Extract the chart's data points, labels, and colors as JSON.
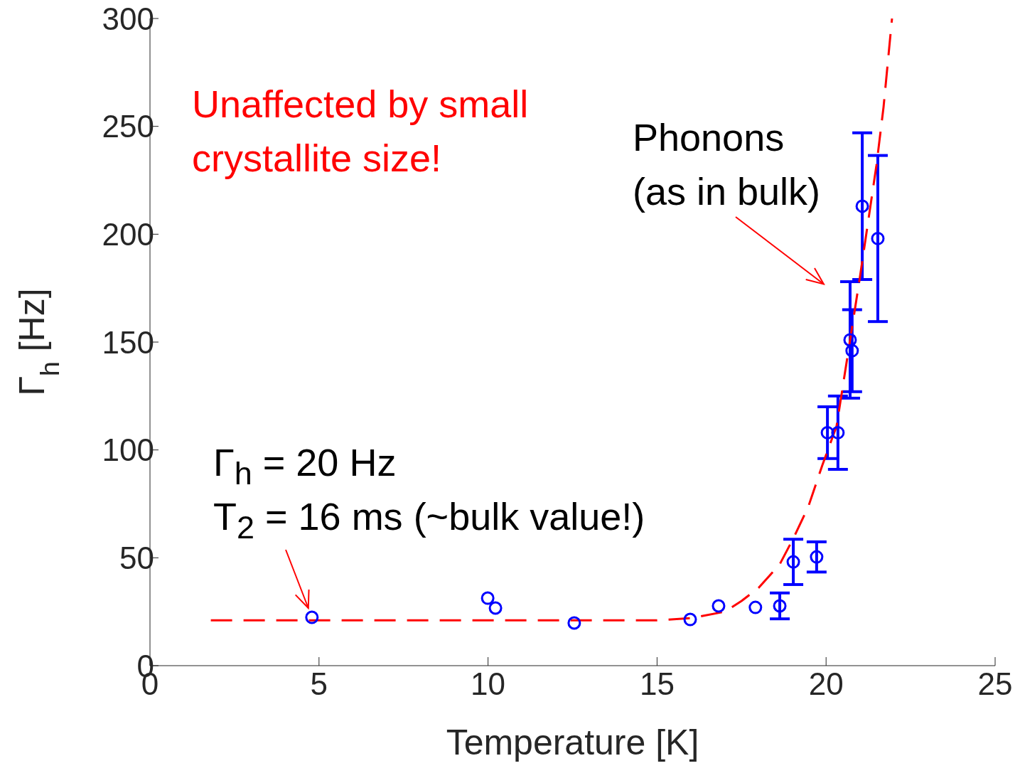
{
  "chart_data": {
    "type": "scatter",
    "xlabel": "Temperature [K]",
    "ylabel": "Γ$_{h}$ [Hz]",
    "xlim": [
      0,
      25
    ],
    "xticks": [
      0,
      5,
      10,
      15,
      20,
      25
    ],
    "ylim": [
      0,
      300
    ],
    "yticks": [
      0,
      50,
      100,
      150,
      200,
      250,
      300
    ],
    "grid": false,
    "legend": false,
    "marker": "circle",
    "series": [
      {
        "color": "#0000ff",
        "x": [
          4.79,
          9.99,
          10.22,
          12.55,
          15.98,
          16.82,
          17.91,
          18.63,
          19.03,
          19.72,
          20.04,
          20.35,
          20.71,
          20.77,
          21.07,
          21.53
        ],
        "values": [
          22.4,
          31.3,
          26.7,
          19.8,
          21.4,
          27.7,
          27,
          27.7,
          48.1,
          50.4,
          108,
          108,
          151,
          146,
          213,
          198
        ],
        "errors": [
          null,
          null,
          null,
          null,
          null,
          null,
          null,
          6,
          10.5,
          7,
          12,
          17,
          27,
          19,
          34,
          38.5
        ]
      },
      {
        "type": "line",
        "color": "#ff0000",
        "line_style": "dashed",
        "marker": "none",
        "x": [
          1.8,
          5,
          10,
          15,
          16,
          17,
          17.5,
          18,
          18.63,
          19.03,
          19.47,
          19.89,
          20.31,
          21.0,
          21.49,
          21.7,
          21.95
        ],
        "values": [
          21,
          21,
          21,
          21,
          22,
          25,
          30,
          36,
          47,
          59,
          73.5,
          93,
          111,
          180,
          232,
          259,
          300
        ]
      }
    ],
    "annotations": [
      "Unaffected by small crystallite size!",
      "Phonons (as in bulk)",
      "Γ$_{h}$ = 20 Hz",
      {
        "text": "T$_{2}$ = 16 ms (~bulk value!)",
        "x": 4.79,
        "y": 22.4
      }
    ]
  }
}
